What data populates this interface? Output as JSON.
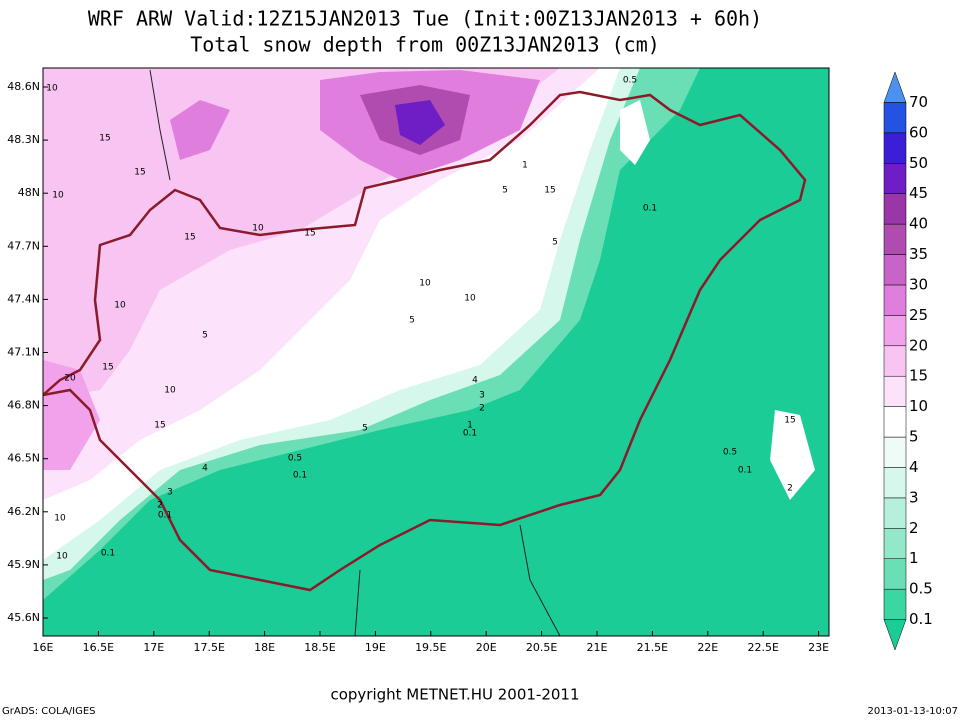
{
  "title": {
    "line1": "WRF ARW Valid:12Z15JAN2013 Tue (Init:00Z13JAN2013 + 60h)",
    "line2": "Total snow depth from 00Z13JAN2013 (cm)"
  },
  "map": {
    "lat_labels": [
      "48.6N",
      "48.3N",
      "48N",
      "47.7N",
      "47.4N",
      "47.1N",
      "46.8N",
      "46.5N",
      "46.2N",
      "45.9N",
      "45.6N"
    ],
    "lon_labels": [
      "16E",
      "16.5E",
      "17E",
      "17.5E",
      "18E",
      "18.5E",
      "19E",
      "19.5E",
      "20E",
      "20.5E",
      "21E",
      "21.5E",
      "22E",
      "22.5E",
      "23E"
    ],
    "contour_labels": [
      "10",
      "15",
      "10",
      "15",
      "15",
      "10",
      "15",
      "20",
      "15",
      "10",
      "10",
      "15",
      "5",
      "4",
      "3",
      "2",
      "5",
      "10",
      "5",
      "4",
      "3",
      "2",
      "1",
      "0.1",
      "0.5",
      "0.1",
      "0.1",
      "0.1",
      "2",
      "0.1",
      "0.5",
      "0.1",
      "15",
      "10",
      "10",
      "5",
      "10",
      "15",
      "5",
      "1",
      "0.5"
    ]
  },
  "colorbar": {
    "levels": [
      0.1,
      0.5,
      1,
      2,
      3,
      4,
      5,
      10,
      15,
      20,
      25,
      30,
      35,
      40,
      45,
      50,
      60,
      70
    ],
    "colors": [
      "#1ccc96",
      "#3cd6a2",
      "#6adfb6",
      "#92e8c9",
      "#b6f0dc",
      "#d6f7eb",
      "#eefbf6",
      "#ffffff",
      "#fde2fb",
      "#f8c4f2",
      "#f2a2ea",
      "#e07ede",
      "#c864c8",
      "#b04cb0",
      "#9a36a8",
      "#6e1ec4",
      "#3c1ed6",
      "#2452e2",
      "#4a92ee"
    ]
  },
  "footer": {
    "copyright": "copyright METNET.HU 2001-2011",
    "software": "GrADS: COLA/IGES",
    "timestamp": "2013-01-13-10:07"
  }
}
